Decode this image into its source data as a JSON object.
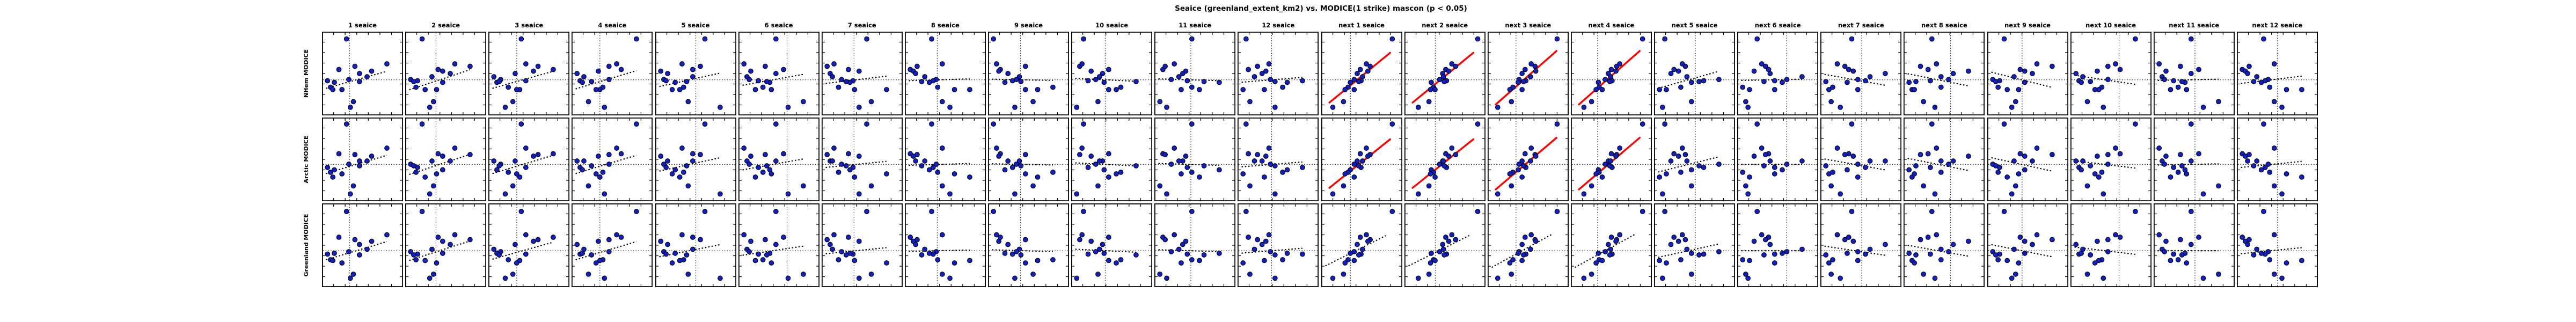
{
  "chart_data": {
    "type": "scatter",
    "title": "Seaice (greenland_extent_km2) vs. MODICE(1 strike) mascon (p < 0.05)",
    "grid": "3 rows x 24 columns of scatter subplots, no axis tick labels, inward ticks on all spines",
    "columns": [
      "1 seaice",
      "2 seaice",
      "3 seaice",
      "4 seaice",
      "5 seaice",
      "6 seaice",
      "7 seaice",
      "8 seaice",
      "9 seaice",
      "10 seaice",
      "11 seaice",
      "12 seaice",
      "next 1 seaice",
      "next 2 seaice",
      "next 3 seaice",
      "next 4 seaice",
      "next 5 seaice",
      "next 6 seaice",
      "next 7 seaice",
      "next 8 seaice",
      "next 9 seaice",
      "next 10 seaice",
      "next 11 seaice",
      "next 12 seaice"
    ],
    "rows": [
      {
        "label": "NHem MODICE",
        "y": [
          0.07,
          0.45,
          0.41,
          0.38,
          0.47,
          0.5,
          0.54,
          0.575,
          0.59,
          0.61,
          0.6,
          0.67,
          0.7,
          0.7,
          0.85,
          0.92
        ],
        "zero_y": 0.575
      },
      {
        "label": "Arctic MODICE",
        "y": [
          0.06,
          0.43,
          0.44,
          0.36,
          0.46,
          0.52,
          0.52,
          0.56,
          0.6,
          0.63,
          0.58,
          0.66,
          0.72,
          0.68,
          0.83,
          0.93
        ],
        "zero_y": 0.56
      },
      {
        "label": "Greenland MODICE",
        "y": [
          0.08,
          0.4,
          0.43,
          0.37,
          0.45,
          0.49,
          0.55,
          0.58,
          0.61,
          0.6,
          0.62,
          0.68,
          0.69,
          0.72,
          0.86,
          0.91
        ],
        "zero_y": 0.565
      }
    ],
    "base_x": [
      0.29,
      0.19,
      0.4,
      0.82,
      0.62,
      0.46,
      0.56,
      0.32,
      0.04,
      0.13,
      0.46,
      0.08,
      0.11,
      0.23,
      0.38,
      0.34
    ],
    "x_shifts": [
      0,
      1,
      2,
      3,
      4,
      5,
      6,
      7,
      8,
      9,
      10,
      11,
      0,
      0,
      0,
      0,
      12,
      13,
      14,
      15,
      1,
      3,
      5,
      7
    ],
    "x_overrides": {
      "12": [
        0.9,
        0.48,
        0.61,
        0.56,
        0.58,
        0.44,
        0.51,
        0.4,
        0.49,
        0.35,
        0.46,
        0.32,
        0.4,
        0.28,
        0.26,
        0.12
      ],
      "13": [
        0.93,
        0.51,
        0.64,
        0.59,
        0.55,
        0.47,
        0.48,
        0.43,
        0.52,
        0.32,
        0.49,
        0.35,
        0.37,
        0.31,
        0.29,
        0.15
      ],
      "14": [
        0.88,
        0.46,
        0.59,
        0.54,
        0.6,
        0.42,
        0.53,
        0.38,
        0.47,
        0.37,
        0.44,
        0.3,
        0.42,
        0.26,
        0.28,
        0.1
      ],
      "15": [
        0.91,
        0.5,
        0.57,
        0.61,
        0.56,
        0.46,
        0.49,
        0.42,
        0.51,
        0.33,
        0.48,
        0.34,
        0.38,
        0.3,
        0.24,
        0.14
      ]
    },
    "zero_x": [
      0.34,
      0.38,
      0.35,
      0.35,
      0.5,
      0.6,
      0.4,
      0.4,
      0.4,
      0.42,
      0.45,
      0.42,
      0.36,
      0.38,
      0.35,
      0.33,
      0.51,
      0.61,
      0.51,
      0.58,
      0.43,
      0.6,
      0.51,
      0.5
    ],
    "trend_slopes": [
      [
        0.28,
        0.33,
        0.28,
        0.3,
        0.22,
        0.18,
        0.12,
        0.03,
        -0.02,
        -0.05,
        -0.03,
        0.08,
        0.82,
        0.82,
        0.88,
        0.88,
        0.28,
        0.02,
        -0.18,
        -0.2,
        -0.25,
        -0.15,
        0.02,
        0.12
      ],
      [
        0.3,
        0.33,
        0.3,
        0.3,
        0.22,
        0.18,
        0.1,
        0.03,
        -0.02,
        -0.05,
        -0.03,
        0.08,
        0.8,
        0.8,
        0.85,
        0.85,
        0.25,
        0.0,
        -0.18,
        -0.2,
        -0.22,
        -0.12,
        0.02,
        0.1
      ],
      [
        0.3,
        0.32,
        0.28,
        0.3,
        0.2,
        0.15,
        0.1,
        0.02,
        -0.03,
        -0.05,
        -0.03,
        0.08,
        0.5,
        0.5,
        0.55,
        0.55,
        0.22,
        0.0,
        -0.15,
        -0.18,
        -0.2,
        -0.12,
        0.0,
        0.1
      ]
    ],
    "significant_cells": {
      "0": [
        12,
        13,
        14,
        15
      ],
      "1": [
        12,
        13,
        14,
        15
      ],
      "2": []
    },
    "colors": {
      "point_fill": "#1020c8",
      "point_edge": "#000000",
      "trend_dotted": "#000000",
      "zero_line": "#000000",
      "significant_line": "#ff0000",
      "spine": "#000000",
      "background": "#ffffff"
    },
    "marker_radius": 4.3,
    "legend": "none",
    "axis_tick_labels": "none"
  }
}
